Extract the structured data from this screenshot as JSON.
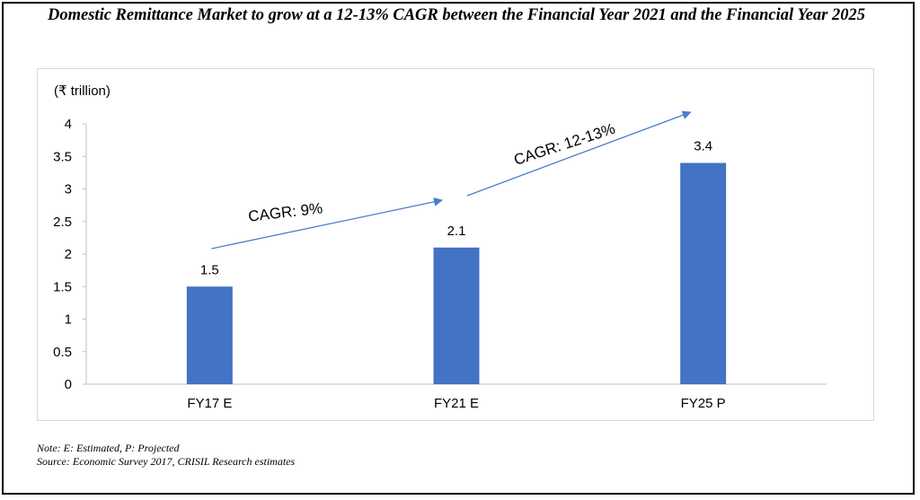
{
  "title": "Domestic Remittance Market to grow at a 12-13% CAGR between the Financial Year 2021 and the Financial Year 2025",
  "colors": {
    "bar": "#4472C4",
    "arrow": "#4A7EC8"
  },
  "chart_data": {
    "type": "bar",
    "title": "Domestic Remittance Market to grow at a 12-13% CAGR between the Financial Year 2021 and the Financial Year 2025",
    "unit_label": "(₹  trillion)",
    "categories": [
      "FY17 E",
      "FY21 E",
      "FY25 P"
    ],
    "values": [
      1.5,
      2.1,
      3.4
    ],
    "value_labels": [
      "1.5",
      "2.1",
      "3.4"
    ],
    "ylim": [
      0,
      4
    ],
    "yticks": [
      0,
      0.5,
      1,
      1.5,
      2,
      2.5,
      3,
      3.5,
      4
    ],
    "ytick_labels": [
      "0",
      "0.5",
      "1",
      "1.5",
      "2",
      "2.5",
      "3",
      "3.5",
      "4"
    ],
    "grid": false,
    "annotations": [
      {
        "text": "CAGR: 9%",
        "from": "FY17 E",
        "to": "FY21 E"
      },
      {
        "text": "CAGR: 12-13%",
        "from": "FY21 E",
        "to": "FY25 P"
      }
    ]
  },
  "notes": {
    "note": "Note: E: Estimated, P: Projected",
    "source": "Source: Economic Survey 2017, CRISIL Research estimates"
  }
}
